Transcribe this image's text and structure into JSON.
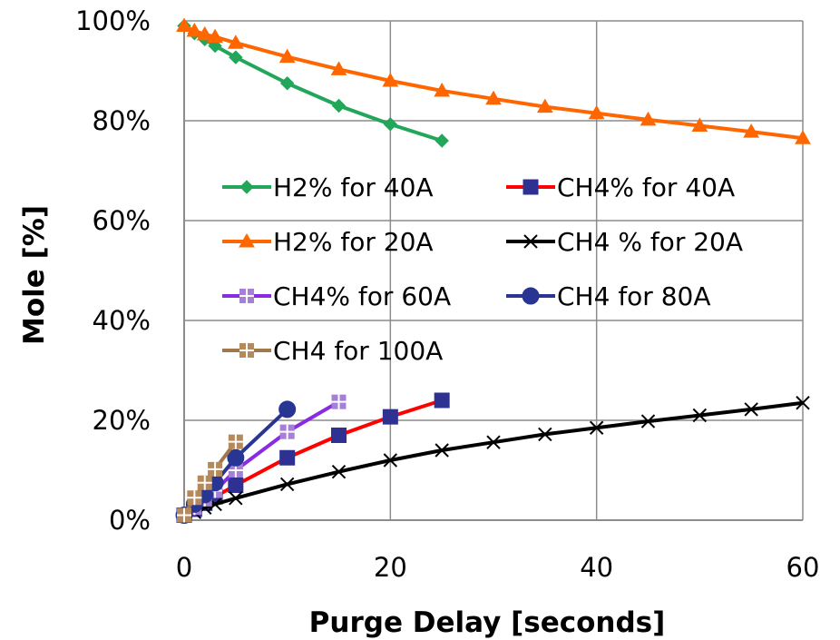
{
  "chart_data": {
    "type": "line",
    "xlabel": "Purge Delay [seconds]",
    "ylabel": "Mole [%]",
    "xlim": [
      0,
      60
    ],
    "ylim": [
      0,
      100
    ],
    "xticks": [
      0,
      20,
      40,
      60
    ],
    "yticks": [
      0,
      20,
      40,
      60,
      80,
      100
    ],
    "x_tick_labels": [
      "0",
      "20",
      "40",
      "60"
    ],
    "y_tick_labels": [
      "0%",
      "20%",
      "40%",
      "60%",
      "80%",
      "100%"
    ],
    "grid": true,
    "legend_position": "center-left",
    "series": [
      {
        "name": "H2% for 40A",
        "color": "#22a65a",
        "marker": "diamond",
        "points": [
          [
            0,
            99
          ],
          [
            1,
            97.5
          ],
          [
            2,
            96.3
          ],
          [
            3,
            95
          ],
          [
            5,
            92.7
          ],
          [
            10,
            87.5
          ],
          [
            15,
            83
          ],
          [
            20,
            79.3
          ],
          [
            25,
            76
          ]
        ]
      },
      {
        "name": "CH4% for 40A",
        "color": "#ff0000",
        "marker": "square",
        "marker_color": "#2e3192",
        "points": [
          [
            0,
            1
          ],
          [
            1,
            2.2
          ],
          [
            2,
            3.4
          ],
          [
            3,
            4.7
          ],
          [
            5,
            7
          ],
          [
            10,
            12.5
          ],
          [
            15,
            17
          ],
          [
            20,
            20.7
          ],
          [
            25,
            24
          ]
        ]
      },
      {
        "name": "H2% for 20A",
        "color": "#ff6600",
        "marker": "triangle",
        "points": [
          [
            0,
            99
          ],
          [
            1,
            98
          ],
          [
            2,
            97.3
          ],
          [
            3,
            96.8
          ],
          [
            5,
            95.6
          ],
          [
            10,
            92.8
          ],
          [
            15,
            90.3
          ],
          [
            20,
            88
          ],
          [
            25,
            86
          ],
          [
            30,
            84.4
          ],
          [
            35,
            82.8
          ],
          [
            40,
            81.5
          ],
          [
            45,
            80.2
          ],
          [
            50,
            79
          ],
          [
            55,
            77.8
          ],
          [
            60,
            76.5
          ]
        ]
      },
      {
        "name": "CH4 % for 20A",
        "color": "#000000",
        "marker": "x",
        "points": [
          [
            0,
            1
          ],
          [
            1,
            1.6
          ],
          [
            2,
            2.5
          ],
          [
            3,
            3.2
          ],
          [
            5,
            4.4
          ],
          [
            10,
            7.2
          ],
          [
            15,
            9.7
          ],
          [
            20,
            12
          ],
          [
            25,
            14
          ],
          [
            30,
            15.6
          ],
          [
            35,
            17.2
          ],
          [
            40,
            18.5
          ],
          [
            45,
            19.8
          ],
          [
            50,
            21
          ],
          [
            55,
            22.2
          ],
          [
            60,
            23.5
          ]
        ]
      },
      {
        "name": "CH4% for 60A",
        "color": "#8a2be2",
        "marker": "square-cross",
        "marker_color": "#a67fd6",
        "points": [
          [
            0,
            1
          ],
          [
            1,
            2.5
          ],
          [
            2,
            4.2
          ],
          [
            3,
            5.9
          ],
          [
            5,
            10
          ],
          [
            10,
            17.7
          ],
          [
            15,
            23.7
          ]
        ]
      },
      {
        "name": "CH4 for 80A",
        "color": "#283593",
        "marker": "circle",
        "points": [
          [
            0,
            1
          ],
          [
            1,
            3.2
          ],
          [
            2,
            5.1
          ],
          [
            3,
            7.5
          ],
          [
            5,
            12.5
          ],
          [
            10,
            22.2
          ]
        ]
      },
      {
        "name": "CH4 for 100A",
        "color": "#a0784a",
        "marker": "square-cross",
        "marker_color": "#b5895a",
        "points": [
          [
            0,
            1
          ],
          [
            1,
            4.5
          ],
          [
            2,
            7.5
          ],
          [
            3,
            10.2
          ],
          [
            5,
            15.7
          ]
        ]
      }
    ]
  }
}
